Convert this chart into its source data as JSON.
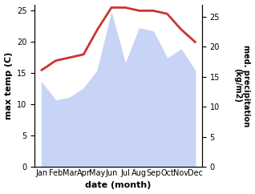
{
  "months": [
    "Jan",
    "Feb",
    "Mar",
    "Apr",
    "May",
    "Jun",
    "Jul",
    "Aug",
    "Sep",
    "Oct",
    "Nov",
    "Dec"
  ],
  "max_temp": [
    15.5,
    17.0,
    17.5,
    18.0,
    22.0,
    25.5,
    25.5,
    25.0,
    25.0,
    24.5,
    22.0,
    20.0
  ],
  "precipitation": [
    14.0,
    11.0,
    11.5,
    13.0,
    16.0,
    25.5,
    17.0,
    23.0,
    22.5,
    18.0,
    19.5,
    16.0
  ],
  "temp_color": "#cc3333",
  "precip_fill_color": "#c8d4f5",
  "xlabel": "date (month)",
  "ylabel_left": "max temp (C)",
  "ylabel_right": "med. precipitation\n(kg/m2)",
  "ylim_left": [
    0,
    26
  ],
  "ylim_right": [
    0,
    27
  ],
  "yticks_left": [
    0,
    5,
    10,
    15,
    20,
    25
  ],
  "yticks_right": [
    0,
    5,
    10,
    15,
    20,
    25
  ],
  "bg_color": "#ffffff",
  "fig_width": 3.18,
  "fig_height": 2.42,
  "dpi": 100
}
